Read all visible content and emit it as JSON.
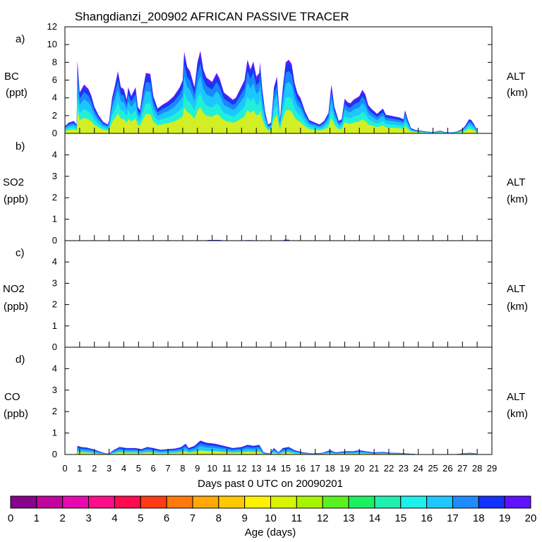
{
  "chart_data": {
    "type": "area",
    "title": "Shangdianzi_200902 AFRICAN PASSIVE TRACER",
    "xlabel": "Days past 0 UTC on 20090201",
    "x_ticks": [
      "0",
      "1",
      "2",
      "3",
      "4",
      "5",
      "6",
      "7",
      "8",
      "9",
      "10",
      "11",
      "12",
      "13",
      "14",
      "15",
      "16",
      "17",
      "18",
      "19",
      "20",
      "21",
      "22",
      "23",
      "24",
      "25",
      "26",
      "27",
      "28",
      "29"
    ],
    "xlim": [
      0,
      29
    ],
    "panels": [
      {
        "id": "a",
        "panel_label": "a)",
        "species": "BC",
        "unit": "(ppt)",
        "right_label": "ALT",
        "right_unit": "(km)",
        "ylim": [
          0,
          12
        ],
        "y_ticks": [
          "0",
          "2",
          "4",
          "6",
          "8",
          "10",
          "12"
        ],
        "envelope": [
          [
            0,
            0.8
          ],
          [
            0.25,
            1.2
          ],
          [
            0.6,
            1.4
          ],
          [
            0.8,
            1.0
          ],
          [
            0.85,
            8.2
          ],
          [
            1.0,
            4.6
          ],
          [
            1.3,
            5.5
          ],
          [
            1.6,
            5.0
          ],
          [
            1.8,
            4.2
          ],
          [
            2.0,
            3.0
          ],
          [
            2.3,
            2.0
          ],
          [
            2.6,
            1.3
          ],
          [
            2.9,
            1.0
          ],
          [
            3.0,
            1.4
          ],
          [
            3.2,
            4.0
          ],
          [
            3.4,
            5.4
          ],
          [
            3.6,
            7.0
          ],
          [
            3.8,
            5.2
          ],
          [
            4.0,
            5.0
          ],
          [
            4.2,
            3.8
          ],
          [
            4.3,
            5.2
          ],
          [
            4.5,
            4.2
          ],
          [
            4.8,
            5.2
          ],
          [
            4.95,
            3.0
          ],
          [
            5.1,
            2.6
          ],
          [
            5.3,
            5.0
          ],
          [
            5.5,
            6.8
          ],
          [
            5.8,
            6.7
          ],
          [
            6.0,
            4.2
          ],
          [
            6.3,
            2.8
          ],
          [
            6.6,
            3.2
          ],
          [
            7.0,
            3.6
          ],
          [
            7.4,
            4.2
          ],
          [
            7.8,
            5.2
          ],
          [
            8.0,
            6.0
          ],
          [
            8.1,
            9.2
          ],
          [
            8.3,
            7.5
          ],
          [
            8.5,
            7.0
          ],
          [
            8.8,
            5.2
          ],
          [
            9.0,
            8.0
          ],
          [
            9.2,
            9.3
          ],
          [
            9.4,
            7.2
          ],
          [
            9.6,
            6.3
          ],
          [
            10.0,
            5.8
          ],
          [
            10.3,
            6.8
          ],
          [
            10.5,
            6.2
          ],
          [
            10.8,
            4.6
          ],
          [
            11.1,
            4.2
          ],
          [
            11.4,
            3.8
          ],
          [
            11.6,
            4.0
          ],
          [
            11.9,
            5.0
          ],
          [
            12.2,
            6.0
          ],
          [
            12.4,
            8.3
          ],
          [
            12.6,
            7.2
          ],
          [
            12.8,
            8.1
          ],
          [
            13.0,
            6.4
          ],
          [
            13.2,
            6.8
          ],
          [
            13.25,
            8.0
          ],
          [
            13.4,
            5.0
          ],
          [
            13.6,
            2.4
          ],
          [
            13.8,
            1.0
          ],
          [
            14.0,
            1.2
          ],
          [
            14.2,
            5.2
          ],
          [
            14.4,
            6.4
          ],
          [
            14.6,
            1.5
          ],
          [
            14.8,
            5.2
          ],
          [
            15.0,
            8.0
          ],
          [
            15.2,
            8.3
          ],
          [
            15.4,
            7.8
          ],
          [
            15.6,
            5.7
          ],
          [
            15.8,
            4.5
          ],
          [
            16.0,
            4.0
          ],
          [
            16.3,
            2.5
          ],
          [
            16.6,
            1.5
          ],
          [
            17.0,
            1.2
          ],
          [
            17.3,
            1.0
          ],
          [
            17.6,
            1.4
          ],
          [
            17.9,
            2.3
          ],
          [
            18.1,
            5.5
          ],
          [
            18.3,
            3.0
          ],
          [
            18.6,
            1.4
          ],
          [
            18.8,
            1.6
          ],
          [
            19.0,
            3.9
          ],
          [
            19.2,
            3.5
          ],
          [
            19.4,
            3.4
          ],
          [
            19.6,
            3.8
          ],
          [
            19.8,
            4.0
          ],
          [
            20.0,
            4.2
          ],
          [
            20.2,
            4.9
          ],
          [
            20.4,
            4.4
          ],
          [
            20.6,
            3.2
          ],
          [
            20.8,
            2.8
          ],
          [
            21.0,
            2.5
          ],
          [
            21.2,
            2.2
          ],
          [
            21.6,
            2.8
          ],
          [
            21.8,
            2.1
          ],
          [
            22.1,
            2.0
          ],
          [
            22.4,
            1.9
          ],
          [
            22.7,
            1.8
          ],
          [
            23.0,
            1.6
          ],
          [
            23.1,
            2.6
          ],
          [
            23.3,
            1.5
          ],
          [
            23.5,
            0.6
          ],
          [
            23.8,
            0.4
          ],
          [
            24.2,
            0.3
          ],
          [
            24.6,
            0.2
          ],
          [
            25.0,
            0.15
          ],
          [
            25.5,
            0.3
          ],
          [
            25.8,
            0.15
          ],
          [
            26.2,
            0.1
          ],
          [
            26.6,
            0.2
          ],
          [
            27.0,
            0.5
          ],
          [
            27.2,
            0.9
          ],
          [
            27.45,
            1.6
          ],
          [
            27.6,
            1.5
          ],
          [
            27.8,
            1.0
          ],
          [
            27.95,
            0.5
          ],
          [
            28.0,
            0.05
          ]
        ],
        "fill_fractions": [
          0.95,
          0.85,
          0.7,
          0.5,
          0.3
        ],
        "core_fraction": 0.32
      },
      {
        "id": "b",
        "panel_label": "b)",
        "species": "SO2",
        "unit": "(ppb)",
        "right_label": "ALT",
        "right_unit": "(km)",
        "ylim": [
          0,
          5
        ],
        "y_ticks": [
          "0",
          "1",
          "2",
          "3",
          "4"
        ],
        "envelope": [
          [
            0,
            0
          ],
          [
            8.5,
            0
          ],
          [
            8.6,
            0.02
          ],
          [
            8.8,
            0
          ],
          [
            9.6,
            0
          ],
          [
            9.7,
            0.03
          ],
          [
            10.6,
            0.03
          ],
          [
            10.7,
            0
          ],
          [
            12.2,
            0
          ],
          [
            12.3,
            0.02
          ],
          [
            12.8,
            0.02
          ],
          [
            12.9,
            0
          ],
          [
            14.8,
            0
          ],
          [
            14.9,
            0.04
          ],
          [
            15.2,
            0.04
          ],
          [
            15.3,
            0
          ],
          [
            29,
            0
          ]
        ],
        "fill_fractions": [
          0.95
        ],
        "core_fraction": 0
      },
      {
        "id": "c",
        "panel_label": "c)",
        "species": "NO2",
        "unit": "(ppb)",
        "right_label": "ALT",
        "right_unit": "(km)",
        "ylim": [
          0,
          5
        ],
        "y_ticks": [
          "0",
          "1",
          "2",
          "3",
          "4"
        ],
        "envelope": [
          [
            0,
            0
          ],
          [
            8.5,
            0
          ],
          [
            8.6,
            0.02
          ],
          [
            8.8,
            0
          ],
          [
            9.4,
            0
          ],
          [
            9.5,
            0.02
          ],
          [
            9.7,
            0
          ],
          [
            29,
            0
          ]
        ],
        "fill_fractions": [
          0.95
        ],
        "core_fraction": 0
      },
      {
        "id": "d",
        "panel_label": "d)",
        "species": "CO",
        "unit": "(ppb)",
        "right_label": "ALT",
        "right_unit": "(km)",
        "ylim": [
          0,
          5
        ],
        "y_ticks": [
          "0",
          "1",
          "2",
          "3",
          "4"
        ],
        "envelope": [
          [
            0,
            0
          ],
          [
            0.8,
            0
          ],
          [
            0.85,
            0.4
          ],
          [
            1.1,
            0.35
          ],
          [
            1.5,
            0.32
          ],
          [
            1.9,
            0.25
          ],
          [
            2.3,
            0.15
          ],
          [
            2.8,
            0.05
          ],
          [
            3.0,
            0.05
          ],
          [
            3.3,
            0.2
          ],
          [
            3.7,
            0.35
          ],
          [
            4.2,
            0.3
          ],
          [
            4.8,
            0.3
          ],
          [
            5.2,
            0.25
          ],
          [
            5.6,
            0.35
          ],
          [
            6.0,
            0.3
          ],
          [
            6.5,
            0.22
          ],
          [
            7.0,
            0.25
          ],
          [
            7.5,
            0.28
          ],
          [
            7.9,
            0.35
          ],
          [
            8.2,
            0.5
          ],
          [
            8.4,
            0.3
          ],
          [
            8.8,
            0.4
          ],
          [
            9.2,
            0.65
          ],
          [
            9.6,
            0.55
          ],
          [
            10.2,
            0.5
          ],
          [
            10.8,
            0.4
          ],
          [
            11.4,
            0.3
          ],
          [
            12.0,
            0.35
          ],
          [
            12.4,
            0.45
          ],
          [
            12.8,
            0.4
          ],
          [
            13.2,
            0.45
          ],
          [
            13.5,
            0.1
          ],
          [
            13.9,
            0.05
          ],
          [
            14.2,
            0.3
          ],
          [
            14.5,
            0.1
          ],
          [
            14.8,
            0.3
          ],
          [
            15.2,
            0.35
          ],
          [
            15.6,
            0.2
          ],
          [
            16.2,
            0.1
          ],
          [
            16.8,
            0.05
          ],
          [
            17.5,
            0.08
          ],
          [
            18.0,
            0.2
          ],
          [
            18.4,
            0.1
          ],
          [
            19.0,
            0.15
          ],
          [
            19.6,
            0.15
          ],
          [
            20.0,
            0.2
          ],
          [
            20.4,
            0.15
          ],
          [
            21.0,
            0.1
          ],
          [
            21.6,
            0.12
          ],
          [
            22.2,
            0.08
          ],
          [
            22.8,
            0.07
          ],
          [
            23.2,
            0.05
          ],
          [
            23.6,
            0.03
          ],
          [
            24.0,
            0.01
          ],
          [
            26.5,
            0.01
          ],
          [
            27.0,
            0.05
          ],
          [
            27.5,
            0.08
          ],
          [
            27.9,
            0.05
          ],
          [
            28.0,
            0
          ],
          [
            29,
            0
          ]
        ],
        "fill_fractions": [
          0.95,
          0.8,
          0.6
        ],
        "core_fraction": 0.3
      }
    ],
    "colorbar": {
      "label": "Age (days)",
      "tick_labels": [
        "0",
        "1",
        "2",
        "3",
        "4",
        "5",
        "6",
        "7",
        "8",
        "9",
        "10",
        "11",
        "12",
        "13",
        "14",
        "15",
        "16",
        "17",
        "18",
        "19",
        "20"
      ],
      "colors": [
        "#87048c",
        "#c1069e",
        "#e609b0",
        "#ff0d8a",
        "#ff0a4f",
        "#ff3b14",
        "#ff7a0a",
        "#ffa806",
        "#ffc800",
        "#fff000",
        "#d8f400",
        "#a8f400",
        "#5cf020",
        "#1cf060",
        "#1ff0b0",
        "#1ef0ee",
        "#1ec8ff",
        "#1e8cff",
        "#1432ff",
        "#6012ff"
      ]
    },
    "fill_colors": {
      "outer": "#6b16ff",
      "layers": [
        "#1438f0",
        "#1a86ff",
        "#1cc6ff",
        "#20f0d8"
      ],
      "core": "#d2ee24"
    }
  }
}
